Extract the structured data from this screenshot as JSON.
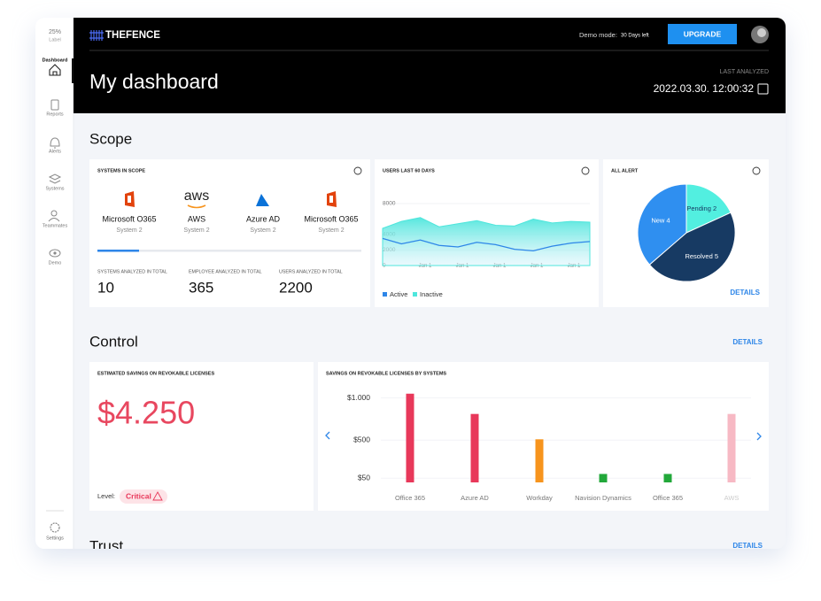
{
  "sidebar": {
    "zoom": "25%",
    "zoom_label": "Label",
    "items": [
      "Dashboard",
      "Reports",
      "Alerts",
      "Systems",
      "Teammates",
      "Demo"
    ],
    "settings": "Settings"
  },
  "header": {
    "brand": "THEFENCE",
    "demo_label": "Demo mode:",
    "demo_value": "30 Days left",
    "upgrade": "UPGRADE",
    "title": "My dashboard",
    "last_analyzed_label": "LAST ANALYZED",
    "last_analyzed": "2022.03.30. 12:00:32"
  },
  "scope": {
    "title": "Scope",
    "systems": {
      "title": "SYSTEMS IN SCOPE",
      "items": [
        {
          "name": "Microsoft O365",
          "sub": "System 2"
        },
        {
          "name": "AWS",
          "sub": "System 2",
          "logo": "aws"
        },
        {
          "name": "Azure AD",
          "sub": "System 2"
        },
        {
          "name": "Microsoft O365",
          "sub": "System 2"
        }
      ],
      "stats": [
        {
          "label": "SYSTEMS ANALYZED IN TOTAL",
          "value": "10"
        },
        {
          "label": "EMPLOYEE ANALYZED IN TOTAL",
          "value": "365"
        },
        {
          "label": "USERS ANALYZED IN TOTAL",
          "value": "2200"
        }
      ]
    },
    "users": {
      "type": "line",
      "title": "USERS LAST 60 DAYS",
      "ylim": [
        0,
        8000
      ],
      "yticks": [
        0,
        2000,
        4000,
        8000
      ],
      "xtick_labels": [
        "Jan 1",
        "Jan 1",
        "Jan 1",
        "Jan 1",
        "Jan 1"
      ],
      "series": [
        {
          "name": "Active",
          "color": "#2e86e8",
          "values": [
            3500,
            2800,
            3300,
            2600,
            2400,
            3000,
            2700,
            2100,
            1900,
            2500,
            2900,
            3100
          ]
        },
        {
          "name": "Inactive",
          "color": "#4ee6dc",
          "values": [
            4800,
            5700,
            6200,
            5000,
            5400,
            5800,
            5200,
            5100,
            6000,
            5500,
            5700,
            5600
          ]
        }
      ]
    },
    "alerts": {
      "type": "pie",
      "title": "ALL ALERT",
      "values": [
        2,
        5,
        4
      ],
      "value_labels": [
        "Pending 2",
        "Resolved 5",
        "New 4"
      ],
      "colors": [
        "#52efe0",
        "#173a63",
        "#2f8ff0"
      ],
      "details": "DETAILS"
    }
  },
  "control": {
    "title": "Control",
    "details": "DETAILS",
    "savings": {
      "title": "ESTIMATED SAVINGS ON REVOKABLE LICENSES",
      "value": "$4.250",
      "level_label": "Level:",
      "level": "Critical"
    },
    "by_system": {
      "type": "bar",
      "title": "SAVINGS ON REVOKABLE LICENSES BY SYSTEMS",
      "categories": [
        "Office 365",
        "Azure AD",
        "Workday",
        "Navision Dynamics",
        "Office 365",
        "AWS"
      ],
      "values": [
        1050,
        810,
        510,
        100,
        100,
        810
      ],
      "colors": [
        "#e8385a",
        "#e8385a",
        "#f7941d",
        "#22a83a",
        "#22a83a",
        "#f7b9c4"
      ],
      "ylim": [
        0,
        1100
      ],
      "yticks": [
        {
          "value": 1000,
          "label": "$1.000"
        },
        {
          "value": 500,
          "label": "$500"
        },
        {
          "value": 50,
          "label": "$50"
        }
      ],
      "grid": true
    }
  },
  "trust": {
    "title": "Trust",
    "details": "DETAILS"
  }
}
